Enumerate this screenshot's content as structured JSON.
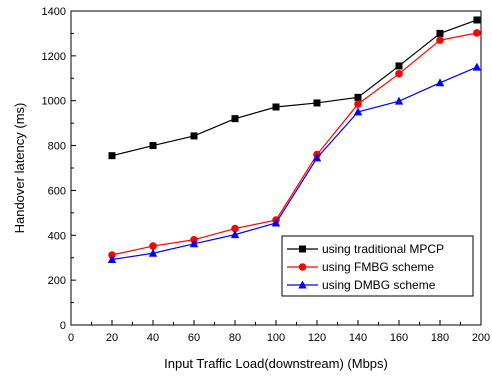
{
  "chart_data": {
    "type": "line",
    "title": "",
    "xlabel": "Input Traffic Load(downstream) (Mbps)",
    "ylabel": "Handover latency (ms)",
    "xlim": [
      0,
      200
    ],
    "ylim": [
      0,
      1400
    ],
    "x_ticks": [
      "0",
      "20",
      "40",
      "60",
      "80",
      "100",
      "120",
      "140",
      "160",
      "180",
      "200"
    ],
    "y_ticks": [
      "0",
      "200",
      "400",
      "600",
      "800",
      "1000",
      "1200",
      "1400"
    ],
    "x": [
      20,
      40,
      60,
      80,
      100,
      120,
      140,
      160,
      180,
      198
    ],
    "grid": false,
    "legend_position": "bottom-right",
    "series": [
      {
        "name": "using traditional MPCP",
        "color": "#000000",
        "marker": "square",
        "values": [
          755,
          800,
          843,
          920,
          972,
          990,
          1015,
          1155,
          1300,
          1360
        ]
      },
      {
        "name": "using FMBG scheme",
        "color": "#ff0000",
        "marker": "circle",
        "values": [
          312,
          352,
          380,
          430,
          468,
          760,
          985,
          1120,
          1270,
          1302
        ]
      },
      {
        "name": "using DMBG scheme",
        "color": "#0000ff",
        "marker": "triangle",
        "values": [
          292,
          320,
          362,
          403,
          455,
          745,
          950,
          998,
          1080,
          1150
        ]
      }
    ]
  }
}
